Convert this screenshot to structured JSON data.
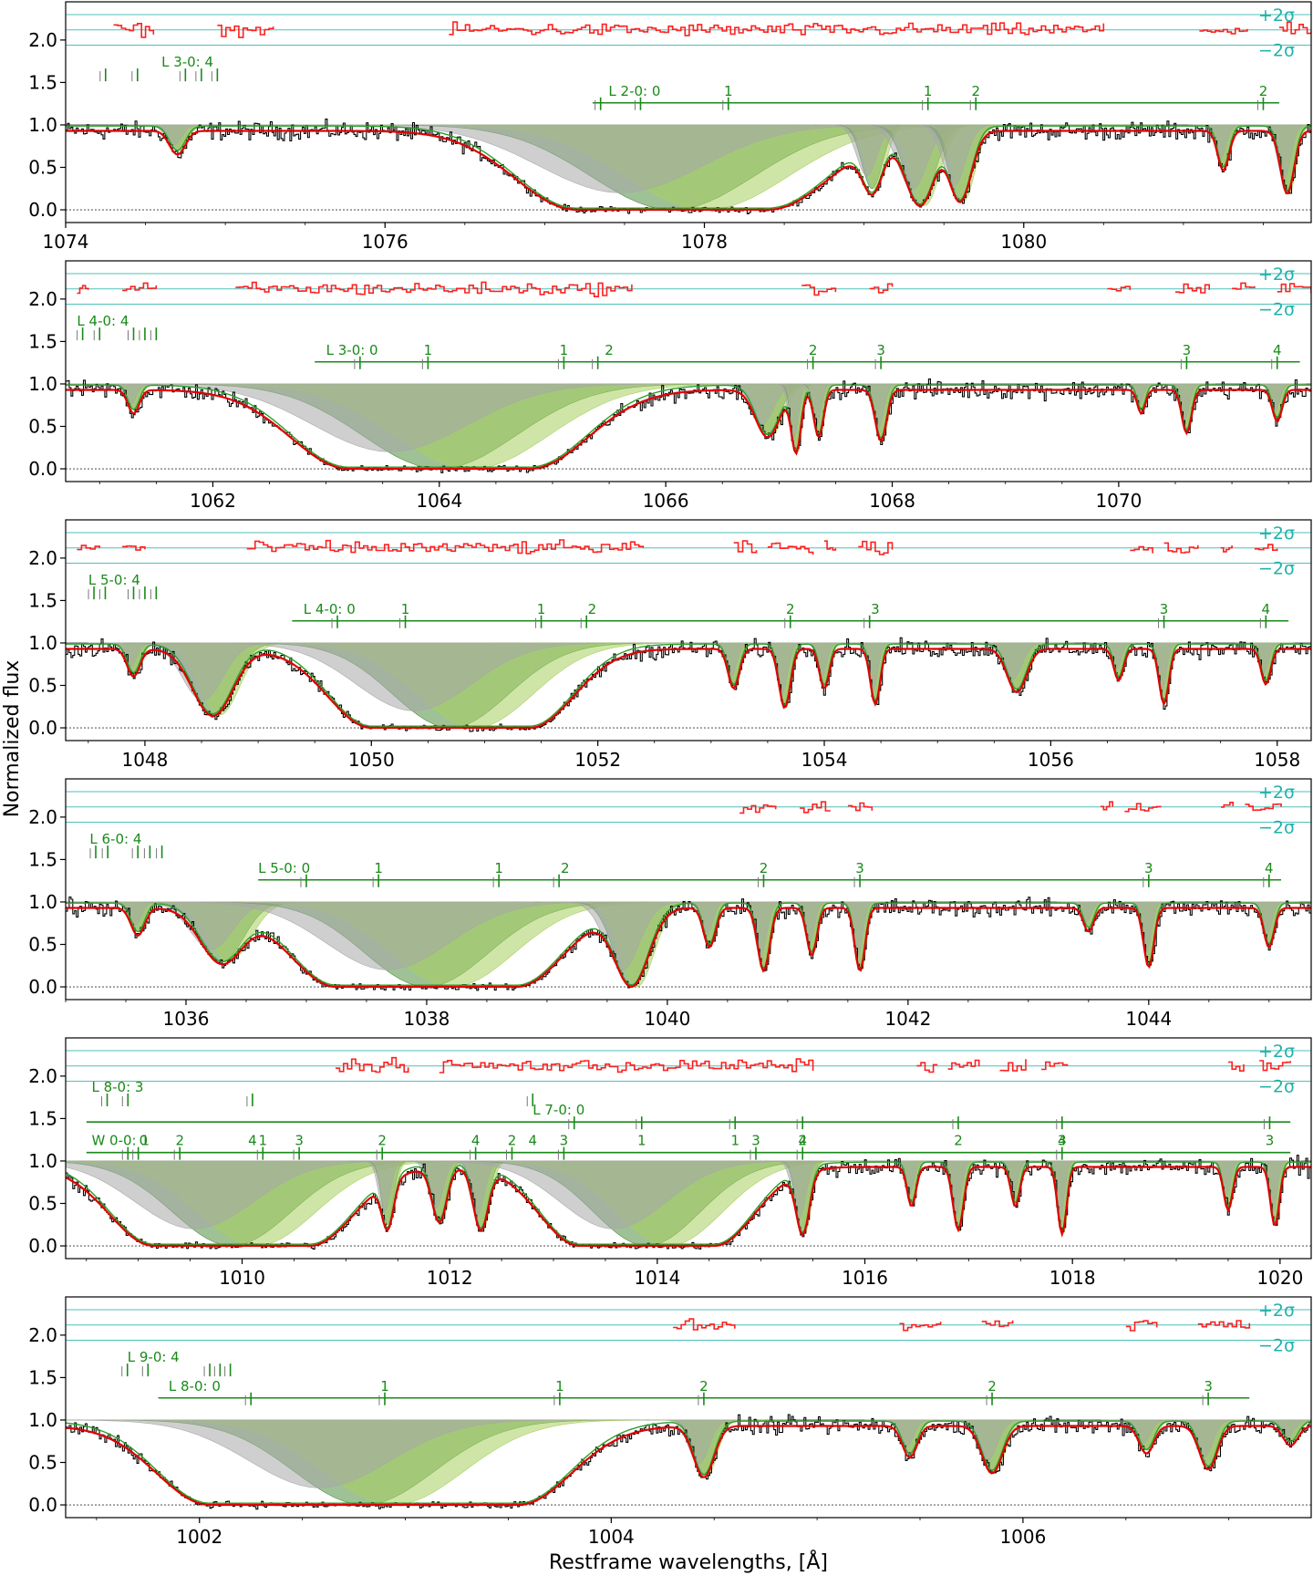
{
  "figure": {
    "ylabel": "Normalized flux",
    "xlabel": "Restframe wavelengths, [Å]",
    "sigma_plus": "+2σ",
    "sigma_minus": "−2σ"
  },
  "colors": {
    "data": "#000000",
    "model": "#e00000",
    "residual": "#ff2020",
    "component_dark": "#4f8f3f",
    "component_light": "#a8d060",
    "component_gray": "#a8a8a8",
    "line_marker": "#1a8a1a",
    "sigma_line": "#20b2aa"
  },
  "chart_data": [
    {
      "type": "line",
      "xlim": [
        1074.0,
        1081.8
      ],
      "ylim": [
        -0.15,
        2.45
      ],
      "yticks": [
        0.0,
        0.5,
        1.0,
        1.5,
        2.0
      ],
      "xticks": [
        1074,
        1076,
        1078,
        1080
      ],
      "series_labels": [
        {
          "text": "L 3-0: 4",
          "x": 1074.6,
          "y": 1.72,
          "lines": [
            1074.25,
            1074.45,
            1074.75,
            1074.85,
            1074.95
          ]
        },
        {
          "text": "L 2-0: 0",
          "x": 1077.4,
          "y": 1.38,
          "lines": [
            1077.35,
            1077.6,
            1078.15,
            1079.4,
            1079.7,
            1081.5
          ]
        }
      ],
      "line_labels": [
        {
          "t": "1",
          "x": 1078.15
        },
        {
          "t": "1",
          "x": 1079.4
        },
        {
          "t": "2",
          "x": 1079.7
        },
        {
          "t": "2",
          "x": 1081.5
        }
      ],
      "bar_range": [
        1077.3,
        1081.6
      ],
      "features": [
        {
          "c": 1074.7,
          "d": 0.3,
          "w": 0.07
        },
        {
          "c": 1077.8,
          "d": 1.0,
          "w": 0.9,
          "flat": 1.2
        },
        {
          "c": 1079.05,
          "d": 0.75,
          "w": 0.09
        },
        {
          "c": 1079.35,
          "d": 0.95,
          "w": 0.13
        },
        {
          "c": 1079.6,
          "d": 0.9,
          "w": 0.1
        },
        {
          "c": 1081.25,
          "d": 0.5,
          "w": 0.05
        },
        {
          "c": 1081.65,
          "d": 0.8,
          "w": 0.06
        }
      ],
      "residual_segments": [
        [
          1074.3,
          1074.55
        ],
        [
          1074.95,
          1075.3
        ],
        [
          1076.4,
          1080.5
        ],
        [
          1081.1,
          1081.4
        ],
        [
          1081.6,
          1081.8
        ]
      ]
    },
    {
      "type": "line",
      "xlim": [
        1060.7,
        1071.7
      ],
      "ylim": [
        -0.15,
        2.45
      ],
      "yticks": [
        0.0,
        0.5,
        1.0,
        1.5,
        2.0
      ],
      "xticks": [
        1062,
        1064,
        1066,
        1068,
        1070
      ],
      "series_labels": [
        {
          "text": "L 4-0: 4",
          "x": 1060.8,
          "y": 1.72,
          "lines": [
            1060.85,
            1061.0,
            1061.3,
            1061.4,
            1061.5
          ]
        },
        {
          "text": "L 3-0: 0",
          "x": 1063.0,
          "y": 1.38,
          "lines": [
            1063.3,
            1063.9,
            1065.1,
            1065.4,
            1067.3,
            1067.9,
            1070.6,
            1071.4
          ]
        }
      ],
      "line_labels": [
        {
          "t": "1",
          "x": 1063.9
        },
        {
          "t": "1",
          "x": 1065.1
        },
        {
          "t": "2",
          "x": 1065.5
        },
        {
          "t": "2",
          "x": 1067.3
        },
        {
          "t": "3",
          "x": 1067.9
        },
        {
          "t": "3",
          "x": 1070.6
        },
        {
          "t": "4",
          "x": 1071.4
        }
      ],
      "bar_range": [
        1062.9,
        1071.6
      ],
      "features": [
        {
          "c": 1061.3,
          "d": 0.3,
          "w": 0.07
        },
        {
          "c": 1064.0,
          "d": 1.0,
          "w": 1.2,
          "flat": 1.6
        },
        {
          "c": 1066.9,
          "d": 0.6,
          "w": 0.15
        },
        {
          "c": 1067.15,
          "d": 0.8,
          "w": 0.06
        },
        {
          "c": 1067.35,
          "d": 0.6,
          "w": 0.06
        },
        {
          "c": 1067.9,
          "d": 0.65,
          "w": 0.07
        },
        {
          "c": 1070.2,
          "d": 0.3,
          "w": 0.05
        },
        {
          "c": 1070.6,
          "d": 0.55,
          "w": 0.06
        },
        {
          "c": 1071.4,
          "d": 0.4,
          "w": 0.06
        }
      ],
      "residual_segments": [
        [
          1060.8,
          1060.9
        ],
        [
          1061.2,
          1061.5
        ],
        [
          1062.2,
          1065.7
        ],
        [
          1067.2,
          1067.5
        ],
        [
          1067.8,
          1068.0
        ],
        [
          1069.9,
          1070.1
        ],
        [
          1070.5,
          1070.8
        ],
        [
          1071.0,
          1071.2
        ],
        [
          1071.4,
          1071.7
        ]
      ]
    },
    {
      "type": "line",
      "xlim": [
        1047.3,
        1058.3
      ],
      "ylim": [
        -0.15,
        2.45
      ],
      "yticks": [
        0.0,
        0.5,
        1.0,
        1.5,
        2.0
      ],
      "xticks": [
        1048,
        1050,
        1052,
        1054,
        1056,
        1058
      ],
      "series_labels": [
        {
          "text": "L 5-0: 4",
          "x": 1047.5,
          "y": 1.72,
          "lines": [
            1047.55,
            1047.65,
            1047.9,
            1048.0,
            1048.1
          ]
        },
        {
          "text": "L 4-0: 0",
          "x": 1049.4,
          "y": 1.38,
          "lines": [
            1049.7,
            1050.3,
            1051.5,
            1051.9,
            1053.7,
            1054.4,
            1057.0,
            1057.9
          ]
        }
      ],
      "line_labels": [
        {
          "t": "1",
          "x": 1050.3
        },
        {
          "t": "1",
          "x": 1051.5
        },
        {
          "t": "2",
          "x": 1051.95
        },
        {
          "t": "2",
          "x": 1053.7
        },
        {
          "t": "3",
          "x": 1054.45
        },
        {
          "t": "3",
          "x": 1057.0
        },
        {
          "t": "4",
          "x": 1057.9
        }
      ],
      "bar_range": [
        1049.3,
        1058.1
      ],
      "features": [
        {
          "c": 1047.9,
          "d": 0.35,
          "w": 0.08
        },
        {
          "c": 1048.6,
          "d": 0.85,
          "w": 0.25
        },
        {
          "c": 1050.7,
          "d": 1.0,
          "w": 0.9,
          "flat": 1.4
        },
        {
          "c": 1053.2,
          "d": 0.5,
          "w": 0.07
        },
        {
          "c": 1053.65,
          "d": 0.75,
          "w": 0.07
        },
        {
          "c": 1054.0,
          "d": 0.5,
          "w": 0.06
        },
        {
          "c": 1054.45,
          "d": 0.7,
          "w": 0.06
        },
        {
          "c": 1055.7,
          "d": 0.55,
          "w": 0.12
        },
        {
          "c": 1056.6,
          "d": 0.4,
          "w": 0.06
        },
        {
          "c": 1057.0,
          "d": 0.7,
          "w": 0.06
        },
        {
          "c": 1057.9,
          "d": 0.45,
          "w": 0.06
        }
      ],
      "residual_segments": [
        [
          1047.4,
          1047.6
        ],
        [
          1047.8,
          1048.0
        ],
        [
          1048.9,
          1052.4
        ],
        [
          1053.2,
          1053.4
        ],
        [
          1053.5,
          1053.9
        ],
        [
          1054.0,
          1054.1
        ],
        [
          1054.3,
          1054.6
        ],
        [
          1056.7,
          1056.9
        ],
        [
          1057.0,
          1057.3
        ],
        [
          1057.5,
          1057.6
        ],
        [
          1057.8,
          1058.0
        ]
      ]
    },
    {
      "type": "line",
      "xlim": [
        1035.0,
        1045.35
      ],
      "ylim": [
        -0.15,
        2.45
      ],
      "yticks": [
        0.0,
        0.5,
        1.0,
        1.5,
        2.0
      ],
      "xticks": [
        1036,
        1038,
        1040,
        1042,
        1044
      ],
      "series_labels": [
        {
          "text": "L 6-0: 4",
          "x": 1035.2,
          "y": 1.72,
          "lines": [
            1035.25,
            1035.35,
            1035.6,
            1035.7,
            1035.8
          ]
        },
        {
          "text": "L 5-0: 0",
          "x": 1036.6,
          "y": 1.38,
          "lines": [
            1037.0,
            1037.6,
            1038.6,
            1039.1,
            1040.8,
            1041.6,
            1044.0,
            1045.0
          ]
        }
      ],
      "line_labels": [
        {
          "t": "1",
          "x": 1037.6
        },
        {
          "t": "1",
          "x": 1038.6
        },
        {
          "t": "2",
          "x": 1039.15
        },
        {
          "t": "2",
          "x": 1040.8
        },
        {
          "t": "3",
          "x": 1041.6
        },
        {
          "t": "3",
          "x": 1044.0
        },
        {
          "t": "4",
          "x": 1045.0
        }
      ],
      "bar_range": [
        1036.6,
        1045.1
      ],
      "features": [
        {
          "c": 1035.6,
          "d": 0.35,
          "w": 0.08
        },
        {
          "c": 1036.3,
          "d": 0.7,
          "w": 0.25
        },
        {
          "c": 1038.0,
          "d": 1.0,
          "w": 0.9,
          "flat": 1.5
        },
        {
          "c": 1039.7,
          "d": 1.0,
          "w": 0.2
        },
        {
          "c": 1040.35,
          "d": 0.5,
          "w": 0.07
        },
        {
          "c": 1040.8,
          "d": 0.8,
          "w": 0.07
        },
        {
          "c": 1041.2,
          "d": 0.6,
          "w": 0.06
        },
        {
          "c": 1041.6,
          "d": 0.8,
          "w": 0.06
        },
        {
          "c": 1043.5,
          "d": 0.3,
          "w": 0.06
        },
        {
          "c": 1044.0,
          "d": 0.75,
          "w": 0.06
        },
        {
          "c": 1045.0,
          "d": 0.5,
          "w": 0.06
        }
      ],
      "residual_segments": [
        [
          1040.6,
          1040.9
        ],
        [
          1041.1,
          1041.35
        ],
        [
          1041.5,
          1041.7
        ],
        [
          1043.6,
          1043.7
        ],
        [
          1043.8,
          1044.1
        ],
        [
          1044.6,
          1044.7
        ],
        [
          1044.8,
          1045.1
        ]
      ]
    },
    {
      "type": "line",
      "xlim": [
        1008.3,
        1020.3
      ],
      "ylim": [
        -0.15,
        2.45
      ],
      "yticks": [
        0.0,
        0.5,
        1.0,
        1.5,
        2.0
      ],
      "xticks": [
        1010,
        1012,
        1014,
        1016,
        1018,
        1020
      ],
      "series_labels": [
        {
          "text": "L 8-0: 3",
          "x": 1008.55,
          "y": 1.85,
          "lines": [
            1008.7,
            1008.9,
            1010.1,
            1012.8
          ]
        },
        {
          "text": "L 7-0: 0",
          "x": 1012.8,
          "y": 1.58,
          "lines": [
            1013.2,
            1013.85,
            1014.75,
            1015.4,
            1016.9,
            1017.9,
            1019.9
          ]
        },
        {
          "text": "W 0-0: 1",
          "x": 1008.55,
          "y": 1.22,
          "lines": [
            1008.9,
            1009.0,
            1009.4,
            1010.2,
            1010.55,
            1011.35,
            1012.25,
            1012.6,
            1013.1,
            1014.95,
            1015.4,
            1017.9
          ]
        }
      ],
      "line_labels": [
        {
          "t": "4",
          "x": 1010.1
        },
        {
          "t": "4",
          "x": 1012.8
        },
        {
          "t": "1",
          "x": 1013.85
        },
        {
          "t": "1",
          "x": 1014.75
        },
        {
          "t": "2",
          "x": 1015.4
        },
        {
          "t": "2",
          "x": 1016.9
        },
        {
          "t": "3",
          "x": 1017.9
        },
        {
          "t": "3",
          "x": 1019.9
        },
        {
          "t": "0",
          "x": 1009.05
        },
        {
          "t": "2",
          "x": 1009.4
        },
        {
          "t": "1",
          "x": 1010.2
        },
        {
          "t": "3",
          "x": 1010.55
        },
        {
          "t": "2",
          "x": 1011.35
        },
        {
          "t": "4",
          "x": 1012.25
        },
        {
          "t": "2",
          "x": 1012.6
        },
        {
          "t": "3",
          "x": 1013.1
        },
        {
          "t": "3",
          "x": 1014.95
        },
        {
          "t": "4",
          "x": 1015.4
        },
        {
          "t": "4",
          "x": 1017.9
        }
      ],
      "bar_range": [
        1008.5,
        1020.1
      ],
      "features": [
        {
          "c": 1009.9,
          "d": 1.0,
          "w": 1.0,
          "flat": 1.5
        },
        {
          "c": 1011.4,
          "d": 0.75,
          "w": 0.08
        },
        {
          "c": 1011.9,
          "d": 0.7,
          "w": 0.1
        },
        {
          "c": 1012.3,
          "d": 0.8,
          "w": 0.1
        },
        {
          "c": 1013.9,
          "d": 1.0,
          "w": 0.9,
          "flat": 1.3
        },
        {
          "c": 1015.4,
          "d": 0.85,
          "w": 0.09
        },
        {
          "c": 1016.45,
          "d": 0.5,
          "w": 0.06
        },
        {
          "c": 1016.9,
          "d": 0.8,
          "w": 0.07
        },
        {
          "c": 1017.45,
          "d": 0.5,
          "w": 0.06
        },
        {
          "c": 1017.9,
          "d": 0.85,
          "w": 0.06
        },
        {
          "c": 1019.5,
          "d": 0.55,
          "w": 0.06
        },
        {
          "c": 1019.95,
          "d": 0.75,
          "w": 0.06
        }
      ],
      "residual_segments": [
        [
          1010.9,
          1011.6
        ],
        [
          1011.9,
          1015.5
        ],
        [
          1016.5,
          1016.7
        ],
        [
          1016.8,
          1017.1
        ],
        [
          1017.3,
          1017.55
        ],
        [
          1017.7,
          1017.95
        ],
        [
          1019.5,
          1019.65
        ],
        [
          1019.8,
          1020.1
        ]
      ]
    },
    {
      "type": "line",
      "xlim": [
        1001.35,
        1007.4
      ],
      "ylim": [
        -0.15,
        2.45
      ],
      "yticks": [
        0.0,
        0.5,
        1.0,
        1.5,
        2.0
      ],
      "xticks": [
        1002,
        1004,
        1006
      ],
      "series_labels": [
        {
          "text": "L 9-0: 4",
          "x": 1001.65,
          "y": 1.72,
          "lines": [
            1001.65,
            1001.75,
            1002.05,
            1002.1,
            1002.15
          ]
        },
        {
          "text": "L 8-0: 0",
          "x": 1001.85,
          "y": 1.38,
          "lines": [
            1002.25,
            1002.9,
            1003.75,
            1004.45,
            1005.85,
            1006.9
          ]
        }
      ],
      "line_labels": [
        {
          "t": "1",
          "x": 1002.9
        },
        {
          "t": "1",
          "x": 1003.75
        },
        {
          "t": "2",
          "x": 1004.45
        },
        {
          "t": "2",
          "x": 1005.85
        },
        {
          "t": "3",
          "x": 1006.9
        }
      ],
      "bar_range": [
        1001.8,
        1007.1
      ],
      "features": [
        {
          "c": 1002.8,
          "d": 1.0,
          "w": 0.6,
          "flat": 1.5
        },
        {
          "c": 1004.45,
          "d": 0.65,
          "w": 0.07
        },
        {
          "c": 1005.45,
          "d": 0.4,
          "w": 0.05
        },
        {
          "c": 1005.85,
          "d": 0.6,
          "w": 0.07
        },
        {
          "c": 1006.6,
          "d": 0.35,
          "w": 0.05
        },
        {
          "c": 1006.9,
          "d": 0.55,
          "w": 0.06
        },
        {
          "c": 1007.3,
          "d": 0.25,
          "w": 0.05
        }
      ],
      "residual_segments": [
        [
          1004.3,
          1004.6
        ],
        [
          1005.4,
          1005.6
        ],
        [
          1005.8,
          1005.95
        ],
        [
          1006.5,
          1006.65
        ],
        [
          1006.85,
          1007.1
        ]
      ]
    }
  ]
}
